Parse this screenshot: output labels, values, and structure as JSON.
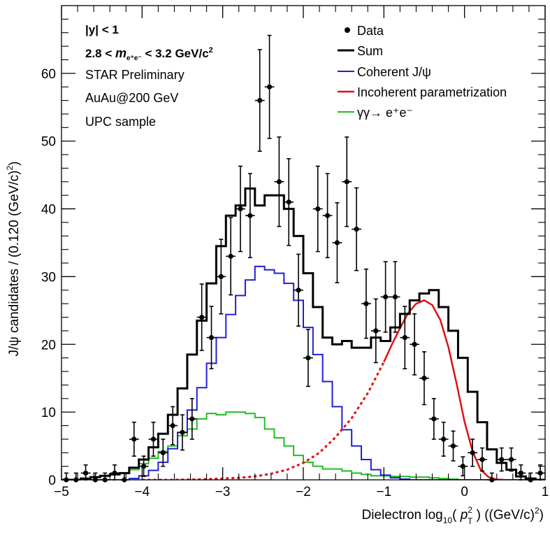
{
  "chart_data": {
    "type": "histogram",
    "xlabel_main": "Dielectron log",
    "xlabel_sub": "10",
    "xlabel_open": "( ",
    "xlabel_var": "p",
    "xlabel_var_sup": "2",
    "xlabel_var_sub": "T",
    "xlabel_close": " ) ((GeV/c)",
    "xlabel_unit_sup": "2",
    "xlabel_end": ")",
    "ylabel_main": "J/ψ candidates / (0.120 (GeV/c)",
    "ylabel_sup": "2",
    "ylabel_end": ")",
    "xlim": [
      -5,
      1
    ],
    "ylim": [
      0,
      70
    ],
    "x_ticks": [
      -5,
      -4,
      -3,
      -2,
      -1,
      0,
      1
    ],
    "x_tick_labels": [
      "−5",
      "−4",
      "−3",
      "−2",
      "−1",
      "0",
      "1"
    ],
    "y_ticks": [
      0,
      10,
      20,
      30,
      40,
      50,
      60
    ],
    "y_tick_labels": [
      "0",
      "10",
      "20",
      "30",
      "40",
      "50",
      "60"
    ],
    "annotations": {
      "rapidity": "|y| < 1",
      "mass_pre": "2.8 < ",
      "mass_var": "m",
      "mass_var_sub": "e⁺e⁻",
      "mass_post": " < 3.2 GeV/c",
      "mass_sup": "2",
      "experiment": "STAR Preliminary",
      "system": "AuAu@200 GeV",
      "sample": "UPC sample"
    },
    "legend": {
      "position": "top-right",
      "data": "Data",
      "sum": "Sum",
      "coherent": "Coherent J/ψ",
      "incoherent": "Incoherent parametrization",
      "gg": "γγ→ e⁺e⁻"
    },
    "colors": {
      "data": "#000000",
      "sum": "#000000",
      "coherent": "#1f1fd6",
      "incoherent": "#e01010",
      "gg": "#1fbf1f"
    },
    "bin_edges": [
      -5.0,
      -4.88,
      -4.76,
      -4.64,
      -4.52,
      -4.4,
      -4.28,
      -4.16,
      -4.04,
      -3.92,
      -3.8,
      -3.68,
      -3.56,
      -3.44,
      -3.32,
      -3.2,
      -3.08,
      -2.96,
      -2.84,
      -2.72,
      -2.6,
      -2.48,
      -2.36,
      -2.24,
      -2.12,
      -2.0,
      -1.88,
      -1.76,
      -1.64,
      -1.52,
      -1.4,
      -1.28,
      -1.16,
      -1.04,
      -0.92,
      -0.8,
      -0.68,
      -0.56,
      -0.44,
      -0.32,
      -0.2,
      -0.08,
      0.04,
      0.16,
      0.28,
      0.4,
      0.52,
      0.64,
      0.76,
      0.88,
      1.0
    ],
    "series": [
      {
        "name": "Data",
        "x": [
          -4.94,
          -4.82,
          -4.7,
          -4.58,
          -4.46,
          -4.34,
          -4.22,
          -4.1,
          -3.98,
          -3.86,
          -3.74,
          -3.62,
          -3.5,
          -3.38,
          -3.26,
          -3.14,
          -3.02,
          -2.9,
          -2.78,
          -2.66,
          -2.54,
          -2.42,
          -2.3,
          -2.18,
          -2.06,
          -1.94,
          -1.82,
          -1.7,
          -1.58,
          -1.46,
          -1.34,
          -1.22,
          -1.1,
          -0.98,
          -0.86,
          -0.74,
          -0.62,
          -0.5,
          -0.38,
          -0.26,
          -0.14,
          -0.02,
          0.1,
          0.22,
          0.34,
          0.46,
          0.58,
          0.7,
          0.82,
          0.94
        ],
        "y": [
          0,
          0,
          1,
          0,
          0,
          1,
          0,
          6,
          2,
          6,
          4,
          8,
          7,
          9,
          24,
          21,
          30,
          33,
          40,
          39,
          56,
          58,
          44,
          41,
          28,
          18,
          40,
          39,
          35,
          44,
          37,
          26,
          22,
          27,
          27,
          21,
          20,
          15,
          9,
          6,
          5,
          2,
          4,
          3,
          0,
          3,
          3,
          1,
          0,
          1
        ],
        "yerr": [
          1,
          1,
          1.2,
          1,
          1,
          1.2,
          1,
          2.5,
          1.5,
          2.5,
          2,
          2.8,
          2.6,
          3,
          4.9,
          4.6,
          5.5,
          5.7,
          6.3,
          6.2,
          7.5,
          7.6,
          6.6,
          6.4,
          5.3,
          4.2,
          6.3,
          6.2,
          5.9,
          6.6,
          6.1,
          5.1,
          4.7,
          5.2,
          5.2,
          4.6,
          4.5,
          3.9,
          3,
          2.5,
          2.2,
          1.4,
          2,
          1.7,
          1,
          1.7,
          1.7,
          1.2,
          1,
          1.2
        ],
        "xerr": 0.06
      },
      {
        "name": "Sum",
        "values": [
          0,
          0,
          0.2,
          0.4,
          0.6,
          0.8,
          1,
          1.8,
          3,
          4.8,
          6.8,
          9.6,
          13.5,
          18.5,
          23.5,
          29,
          34.5,
          39,
          40.5,
          43,
          40.5,
          42,
          42,
          40,
          36,
          30.5,
          25.5,
          21,
          20,
          20.5,
          19.5,
          19.5,
          21,
          20.5,
          22.5,
          24.5,
          26.5,
          27.5,
          28,
          25.5,
          22,
          18,
          13,
          8.5,
          4.5,
          2.5,
          1.5,
          0.5,
          0.2,
          0
        ]
      },
      {
        "name": "Coherent J/ψ",
        "values": [
          0,
          0,
          0,
          0,
          0,
          0,
          0,
          0.2,
          0.6,
          1.4,
          2.6,
          4.6,
          7,
          10.3,
          13.6,
          17.2,
          21,
          24.4,
          27.2,
          29.5,
          31.5,
          31,
          30.5,
          29,
          26.5,
          22.5,
          18.5,
          14.5,
          10.8,
          7.4,
          5,
          3,
          1.5,
          0.7,
          0.3,
          0.1,
          0,
          0,
          0,
          0,
          0,
          0,
          0,
          0,
          0,
          0,
          0,
          0,
          0,
          0
        ]
      },
      {
        "name": "γγ→ e⁺e⁻",
        "values": [
          0,
          0,
          0.2,
          0.4,
          0.6,
          0.8,
          1,
          1.5,
          2.4,
          3.2,
          4.2,
          5,
          6.5,
          7.5,
          9,
          9.8,
          9.6,
          10,
          10,
          9.8,
          9.2,
          7.5,
          6.2,
          5,
          3.6,
          2.6,
          2,
          1.6,
          1.6,
          1.3,
          1,
          0.8,
          0.6,
          0.6,
          0.5,
          0.5,
          0.4,
          0.4,
          0.3,
          0.2,
          0.1,
          0,
          0,
          0,
          0,
          0,
          0,
          0,
          0,
          0
        ]
      },
      {
        "name": "Incoherent parametrization",
        "x": [
          -4.0,
          -3.8,
          -3.6,
          -3.4,
          -3.2,
          -3.0,
          -2.8,
          -2.6,
          -2.4,
          -2.2,
          -2.0,
          -1.8,
          -1.6,
          -1.4,
          -1.2,
          -1.0,
          -0.9,
          -0.8,
          -0.7,
          -0.6,
          -0.5,
          -0.4,
          -0.3,
          -0.2,
          -0.1,
          0.0,
          0.1,
          0.2,
          0.3,
          0.4,
          0.5
        ],
        "y": [
          0,
          0,
          0,
          0.05,
          0.1,
          0.2,
          0.3,
          0.5,
          0.9,
          1.5,
          2.5,
          4.0,
          6.3,
          9.1,
          12.8,
          17.4,
          20.0,
          22.4,
          24.6,
          26.0,
          26.5,
          25.8,
          23.6,
          19.6,
          14.3,
          8.6,
          4.2,
          1.5,
          0.4,
          0.05,
          0
        ],
        "dashed_until": -1.0
      }
    ]
  }
}
